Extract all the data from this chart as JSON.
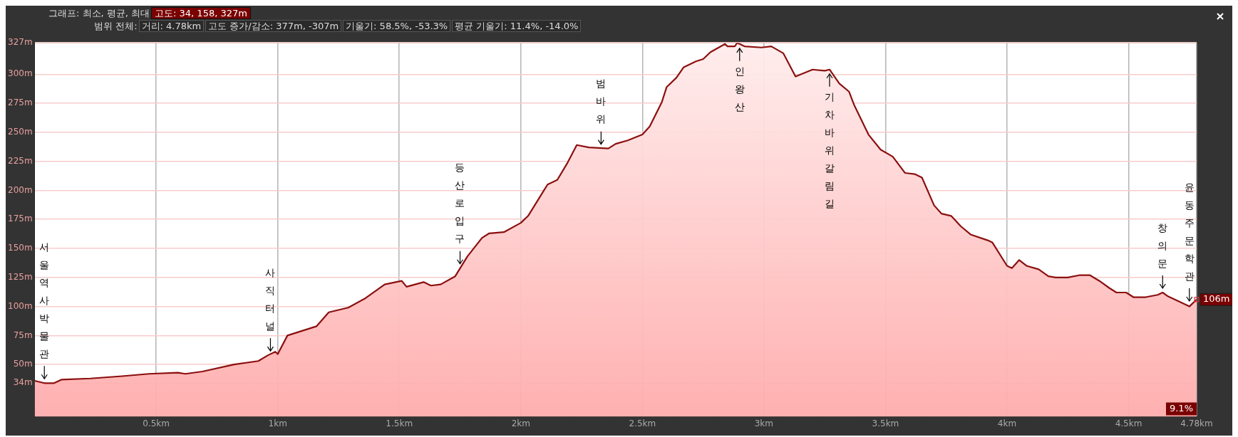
{
  "chart_data": {
    "type": "area",
    "title": "그래프: 최소, 평균, 최대",
    "subtitle": "범위 전체:",
    "x": [
      0,
      0.04,
      0.08,
      0.11,
      0.23,
      0.36,
      0.47,
      0.59,
      0.62,
      0.69,
      0.82,
      0.92,
      0.96,
      0.99,
      1.0,
      1.04,
      1.07,
      1.13,
      1.16,
      1.21,
      1.29,
      1.36,
      1.44,
      1.51,
      1.53,
      1.6,
      1.63,
      1.67,
      1.73,
      1.78,
      1.84,
      1.87,
      1.93,
      2.0,
      2.03,
      2.11,
      2.15,
      2.19,
      2.23,
      2.28,
      2.36,
      2.39,
      2.44,
      2.5,
      2.53,
      2.58,
      2.6,
      2.64,
      2.67,
      2.72,
      2.75,
      2.78,
      2.84,
      2.85,
      2.88,
      2.89,
      2.92,
      2.99,
      3.03,
      3.08,
      3.13,
      3.2,
      3.25,
      3.27,
      3.31,
      3.35,
      3.37,
      3.43,
      3.48,
      3.53,
      3.58,
      3.62,
      3.65,
      3.7,
      3.73,
      3.77,
      3.81,
      3.85,
      3.92,
      3.94,
      4.0,
      4.02,
      4.05,
      4.08,
      4.13,
      4.17,
      4.2,
      4.25,
      4.3,
      4.34,
      4.38,
      4.42,
      4.45,
      4.49,
      4.52,
      4.57,
      4.62,
      4.64,
      4.66,
      4.71,
      4.75,
      4.78
    ],
    "series": [
      {
        "color": "#8b0f0f",
        "values": [
          36,
          34,
          34,
          37,
          38,
          40,
          42,
          43,
          42,
          44,
          50,
          53,
          58,
          61,
          59,
          75,
          77,
          81,
          83,
          95,
          99,
          107,
          119,
          122,
          117,
          121,
          118,
          119,
          126,
          143,
          159,
          163,
          164,
          172,
          178,
          205,
          209,
          223,
          239,
          237,
          236,
          240,
          243,
          248,
          255,
          276,
          289,
          297,
          306,
          311,
          313,
          319,
          326,
          324,
          324,
          327,
          324,
          323,
          324,
          318,
          298,
          304,
          303,
          304,
          292,
          285,
          274,
          248,
          235,
          229,
          215,
          214,
          211,
          187,
          180,
          178,
          169,
          162,
          157,
          155,
          135,
          133,
          140,
          135,
          132,
          126,
          125,
          125,
          127,
          127,
          122,
          116,
          112,
          112,
          108,
          108,
          110,
          112,
          109,
          104,
          100,
          106
        ],
        "value_labels": [
          null,
          null,
          null,
          null,
          null,
          null,
          null,
          null,
          null,
          null,
          null,
          null,
          null,
          null,
          null,
          null,
          null,
          null,
          null,
          null,
          null,
          null,
          null,
          null,
          null,
          null,
          null,
          null,
          null,
          null,
          null,
          null,
          null,
          null,
          null,
          null,
          null,
          null,
          null,
          null,
          null,
          null,
          null,
          null,
          null,
          null,
          null,
          null,
          null,
          null,
          null,
          null,
          null,
          null,
          null,
          null,
          null,
          null,
          null,
          null,
          null,
          null,
          null,
          null,
          null,
          null,
          null,
          null,
          null,
          null,
          null,
          null,
          null,
          null,
          null,
          null,
          null,
          null,
          null,
          null,
          null,
          null,
          null,
          null,
          null,
          null,
          null,
          null,
          null,
          null,
          null,
          null,
          null,
          null,
          null,
          null,
          null,
          null,
          null,
          null,
          null,
          "106m"
        ]
      }
    ],
    "xlim": [
      0,
      4.78
    ],
    "xticks": [
      {
        "value": 0.5,
        "label": "0.5km"
      },
      {
        "value": 1,
        "label": "1km"
      },
      {
        "value": 1.5,
        "label": "1.5km"
      },
      {
        "value": 2,
        "label": "2km"
      },
      {
        "value": 2.5,
        "label": "2.5km"
      },
      {
        "value": 3,
        "label": "3km"
      },
      {
        "value": 3.5,
        "label": "3.5km"
      },
      {
        "value": 4,
        "label": "4km"
      },
      {
        "value": 4.5,
        "label": "4.5km"
      },
      {
        "value": 4.78,
        "label": "4.78km"
      }
    ],
    "ylim": [
      5,
      327
    ],
    "yticks": [
      {
        "value": 34,
        "label": "34m"
      },
      {
        "value": 50,
        "label": "50m"
      },
      {
        "value": 75,
        "label": "75m"
      },
      {
        "value": 100,
        "label": "100m"
      },
      {
        "value": 125,
        "label": "125m"
      },
      {
        "value": 150,
        "label": "150m"
      },
      {
        "value": 175,
        "label": "175m"
      },
      {
        "value": 200,
        "label": "200m"
      },
      {
        "value": 225,
        "label": "225m"
      },
      {
        "value": 250,
        "label": "250m"
      },
      {
        "value": 275,
        "label": "275m"
      },
      {
        "value": 300,
        "label": "300m"
      },
      {
        "value": 327,
        "label": "327m"
      }
    ],
    "grid": true,
    "annotations": [
      "고도: 34, 158, 327m",
      "거리: 4.78km",
      "고도 증가/감소: 377m, -307m",
      "기울기: 58.5%, -53.3%",
      "평균 기울기: 11.4%, -14.0%",
      "9.1%",
      {
        "text": "서울역사박물관",
        "x": 0.04,
        "y": 34
      },
      {
        "text": "사직터널",
        "x": 0.97,
        "y": 58
      },
      {
        "text": "등산로입구",
        "x": 1.75,
        "y": 133
      },
      {
        "text": "범바위",
        "x": 2.33,
        "y": 236
      },
      {
        "text": "인왕산",
        "x": 2.9,
        "y": 326
      },
      {
        "text": "기차바위갈림길",
        "x": 3.27,
        "y": 304
      },
      {
        "text": "창의문",
        "x": 4.64,
        "y": 112
      },
      {
        "text": "윤동주문학관",
        "x": 4.75,
        "y": 101
      }
    ]
  }
}
